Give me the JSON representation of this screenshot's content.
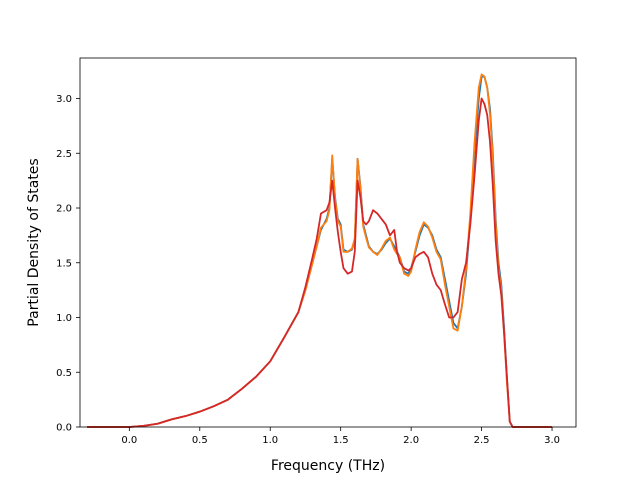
{
  "chart_data": {
    "type": "line",
    "xlabel": "Frequency (THz)",
    "ylabel": "Partial Density of States",
    "xlim": [
      -0.35,
      3.17
    ],
    "ylim": [
      0,
      3.37
    ],
    "xticks": [
      0.0,
      0.5,
      1.0,
      1.5,
      2.0,
      2.5,
      3.0
    ],
    "yticks": [
      0.0,
      0.5,
      1.0,
      1.5,
      2.0,
      2.5,
      3.0
    ],
    "xtick_labels": [
      "0.0",
      "0.5",
      "1.0",
      "1.5",
      "2.0",
      "2.5",
      "3.0"
    ],
    "ytick_labels": [
      "0.0",
      "0.5",
      "1.0",
      "1.5",
      "2.0",
      "2.5",
      "3.0"
    ],
    "grid": false,
    "series": [
      {
        "color": "#1f77b4",
        "x": [
          -0.3,
          -0.1,
          0.0,
          0.1,
          0.2,
          0.3,
          0.4,
          0.5,
          0.6,
          0.7,
          0.8,
          0.9,
          1.0,
          1.1,
          1.2,
          1.25,
          1.3,
          1.33,
          1.36,
          1.4,
          1.42,
          1.44,
          1.46,
          1.48,
          1.5,
          1.52,
          1.55,
          1.58,
          1.6,
          1.62,
          1.64,
          1.66,
          1.68,
          1.7,
          1.73,
          1.76,
          1.79,
          1.82,
          1.85,
          1.88,
          1.9,
          1.92,
          1.95,
          1.98,
          2.0,
          2.03,
          2.06,
          2.09,
          2.12,
          2.15,
          2.18,
          2.21,
          2.24,
          2.27,
          2.3,
          2.33,
          2.36,
          2.39,
          2.42,
          2.45,
          2.48,
          2.5,
          2.52,
          2.54,
          2.56,
          2.58,
          2.6,
          2.62,
          2.64,
          2.66,
          2.68,
          2.7,
          2.72,
          2.74,
          2.76,
          2.8,
          3.0
        ],
        "y": [
          0,
          0,
          0,
          0.01,
          0.03,
          0.07,
          0.1,
          0.14,
          0.19,
          0.25,
          0.35,
          0.46,
          0.6,
          0.82,
          1.05,
          1.25,
          1.5,
          1.65,
          1.8,
          1.9,
          2.0,
          2.45,
          2.1,
          1.9,
          1.85,
          1.62,
          1.6,
          1.62,
          1.7,
          2.45,
          2.2,
          1.85,
          1.75,
          1.65,
          1.6,
          1.58,
          1.62,
          1.68,
          1.72,
          1.65,
          1.6,
          1.55,
          1.42,
          1.4,
          1.45,
          1.6,
          1.75,
          1.85,
          1.82,
          1.75,
          1.62,
          1.55,
          1.35,
          1.15,
          0.95,
          0.9,
          1.1,
          1.4,
          1.9,
          2.5,
          3.0,
          3.2,
          3.2,
          3.1,
          2.9,
          2.5,
          1.9,
          1.5,
          1.3,
          0.9,
          0.45,
          0.05,
          0,
          0,
          0,
          0,
          0
        ]
      },
      {
        "color": "#ff7f0e",
        "x": [
          -0.3,
          -0.1,
          0.0,
          0.1,
          0.2,
          0.3,
          0.4,
          0.5,
          0.6,
          0.7,
          0.8,
          0.9,
          1.0,
          1.1,
          1.2,
          1.25,
          1.3,
          1.33,
          1.36,
          1.4,
          1.42,
          1.44,
          1.46,
          1.48,
          1.5,
          1.52,
          1.55,
          1.58,
          1.6,
          1.62,
          1.64,
          1.66,
          1.68,
          1.7,
          1.73,
          1.76,
          1.79,
          1.82,
          1.85,
          1.88,
          1.9,
          1.92,
          1.95,
          1.98,
          2.0,
          2.03,
          2.06,
          2.09,
          2.12,
          2.15,
          2.18,
          2.21,
          2.24,
          2.27,
          2.3,
          2.33,
          2.36,
          2.39,
          2.42,
          2.45,
          2.48,
          2.5,
          2.52,
          2.54,
          2.56,
          2.58,
          2.6,
          2.62,
          2.64,
          2.66,
          2.68,
          2.7,
          2.72,
          2.74,
          2.76,
          2.8,
          3.0
        ],
        "y": [
          0,
          0,
          0,
          0.01,
          0.03,
          0.07,
          0.1,
          0.14,
          0.19,
          0.25,
          0.35,
          0.46,
          0.6,
          0.82,
          1.05,
          1.25,
          1.5,
          1.65,
          1.82,
          1.88,
          1.98,
          2.48,
          2.08,
          1.88,
          1.83,
          1.6,
          1.6,
          1.63,
          1.72,
          2.45,
          2.18,
          1.83,
          1.73,
          1.64,
          1.6,
          1.57,
          1.63,
          1.7,
          1.73,
          1.62,
          1.58,
          1.55,
          1.4,
          1.38,
          1.42,
          1.62,
          1.78,
          1.87,
          1.83,
          1.73,
          1.6,
          1.53,
          1.3,
          1.1,
          0.9,
          0.88,
          1.1,
          1.45,
          1.95,
          2.6,
          3.1,
          3.22,
          3.2,
          3.1,
          2.85,
          2.45,
          1.85,
          1.45,
          1.25,
          0.85,
          0.4,
          0.05,
          0,
          0,
          0,
          0,
          0
        ]
      },
      {
        "color": "#d62728",
        "x": [
          -0.3,
          -0.1,
          0.0,
          0.1,
          0.2,
          0.3,
          0.4,
          0.5,
          0.6,
          0.7,
          0.8,
          0.9,
          1.0,
          1.1,
          1.2,
          1.25,
          1.3,
          1.33,
          1.36,
          1.4,
          1.42,
          1.44,
          1.46,
          1.48,
          1.5,
          1.52,
          1.55,
          1.58,
          1.6,
          1.62,
          1.64,
          1.66,
          1.68,
          1.7,
          1.73,
          1.76,
          1.79,
          1.82,
          1.85,
          1.88,
          1.9,
          1.92,
          1.95,
          1.98,
          2.0,
          2.03,
          2.06,
          2.09,
          2.12,
          2.15,
          2.18,
          2.21,
          2.24,
          2.27,
          2.3,
          2.33,
          2.36,
          2.39,
          2.42,
          2.45,
          2.48,
          2.5,
          2.52,
          2.54,
          2.56,
          2.58,
          2.6,
          2.62,
          2.64,
          2.66,
          2.68,
          2.7,
          2.72,
          2.74,
          2.76,
          2.8,
          3.0
        ],
        "y": [
          0,
          0,
          0,
          0.01,
          0.03,
          0.07,
          0.1,
          0.14,
          0.19,
          0.25,
          0.35,
          0.46,
          0.6,
          0.82,
          1.05,
          1.28,
          1.55,
          1.72,
          1.95,
          1.98,
          2.05,
          2.25,
          2.0,
          1.78,
          1.6,
          1.45,
          1.4,
          1.42,
          1.6,
          2.25,
          2.1,
          1.88,
          1.85,
          1.88,
          1.98,
          1.95,
          1.9,
          1.85,
          1.75,
          1.8,
          1.6,
          1.5,
          1.45,
          1.43,
          1.45,
          1.55,
          1.58,
          1.6,
          1.55,
          1.4,
          1.3,
          1.25,
          1.12,
          1.0,
          1.0,
          1.05,
          1.35,
          1.5,
          1.85,
          2.3,
          2.8,
          3.0,
          2.95,
          2.85,
          2.6,
          2.2,
          1.7,
          1.4,
          1.2,
          0.85,
          0.45,
          0.05,
          0,
          0,
          0,
          0,
          0
        ]
      }
    ]
  }
}
